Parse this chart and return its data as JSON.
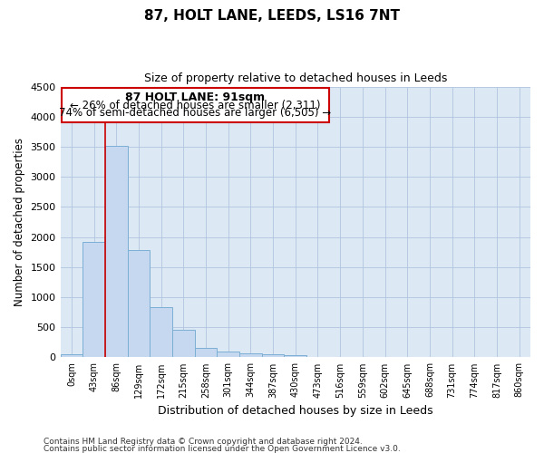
{
  "title": "87, HOLT LANE, LEEDS, LS16 7NT",
  "subtitle": "Size of property relative to detached houses in Leeds",
  "xlabel": "Distribution of detached houses by size in Leeds",
  "ylabel": "Number of detached properties",
  "footnote1": "Contains HM Land Registry data © Crown copyright and database right 2024.",
  "footnote2": "Contains public sector information licensed under the Open Government Licence v3.0.",
  "annotation_title": "87 HOLT LANE: 91sqm",
  "annotation_line1": "← 26% of detached houses are smaller (2,311)",
  "annotation_line2": "74% of semi-detached houses are larger (6,505) →",
  "bar_color": "#c5d8f0",
  "bar_edge_color": "#7bafd4",
  "bg_color": "#dce9f5",
  "vline_color": "#cc0000",
  "vline_x_idx": 2,
  "categories": [
    "0sqm",
    "43sqm",
    "86sqm",
    "129sqm",
    "172sqm",
    "215sqm",
    "258sqm",
    "301sqm",
    "344sqm",
    "387sqm",
    "430sqm",
    "473sqm",
    "516sqm",
    "559sqm",
    "602sqm",
    "645sqm",
    "688sqm",
    "731sqm",
    "774sqm",
    "817sqm",
    "860sqm"
  ],
  "values": [
    50,
    1920,
    3510,
    1780,
    840,
    460,
    160,
    100,
    70,
    55,
    35,
    0,
    0,
    0,
    0,
    0,
    0,
    0,
    0,
    0,
    0
  ],
  "ylim": [
    0,
    4500
  ],
  "yticks": [
    0,
    500,
    1000,
    1500,
    2000,
    2500,
    3000,
    3500,
    4000,
    4500
  ],
  "background_color": "#ffffff",
  "grid_color": "#b0c4de"
}
